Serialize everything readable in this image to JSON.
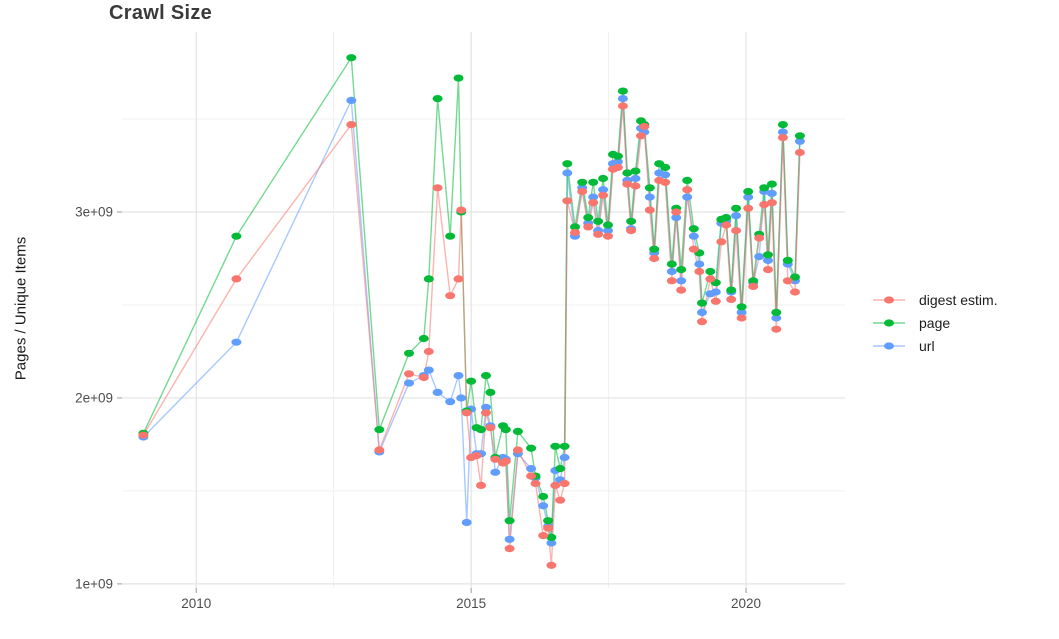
{
  "title": "Crawl Size",
  "y_axis": {
    "title": "Pages / Unique Items",
    "ticks": [
      {
        "label": "3e+09",
        "value": 3.0
      },
      {
        "label": "2e+09",
        "value": 2.0
      },
      {
        "label": "1e+09",
        "value": 1.0
      }
    ]
  },
  "x_axis": {
    "ticks": [
      {
        "label": "2010",
        "value": 2010
      },
      {
        "label": "2015",
        "value": 2015
      },
      {
        "label": "2020",
        "value": 2020
      }
    ]
  },
  "legend": {
    "position": "right",
    "items": [
      {
        "label": "digest estim.",
        "color": "#F8766D",
        "series": "digest estim."
      },
      {
        "label": "page",
        "color": "#00BA38",
        "series": "page"
      },
      {
        "label": "url",
        "color": "#619CFF",
        "series": "url"
      }
    ]
  },
  "chart_data": {
    "type": "line",
    "title": "Crawl Size",
    "xlabel": "",
    "ylabel": "Pages / Unique Items",
    "values_unit": "1e9 (billions of pages / unique items)",
    "x_range": [
      2008.65,
      2021.8
    ],
    "y_range": [
      0.978,
      3.968
    ],
    "x_major_gridlines": [
      2010,
      2015,
      2020
    ],
    "x_minor_gridlines": [
      2012.5,
      2017.5
    ],
    "y_major_gridlines": [
      1.0,
      2.0,
      3.0
    ],
    "y_minor_gridlines": [
      1.5,
      2.5,
      3.5
    ],
    "grid": true,
    "legend_position": "right",
    "x": [
      2009.04,
      2010.73,
      2012.82,
      2013.33,
      2013.87,
      2014.14,
      2014.23,
      2014.39,
      2014.62,
      2014.77,
      2014.82,
      2014.92,
      2015.0,
      2015.1,
      2015.18,
      2015.27,
      2015.35,
      2015.44,
      2015.58,
      2015.63,
      2015.7,
      2015.85,
      2016.09,
      2016.17,
      2016.31,
      2016.4,
      2016.46,
      2016.53,
      2016.62,
      2016.7,
      2016.75,
      2016.89,
      2017.02,
      2017.13,
      2017.22,
      2017.31,
      2017.4,
      2017.49,
      2017.58,
      2017.67,
      2017.76,
      2017.84,
      2017.91,
      2017.99,
      2018.09,
      2018.15,
      2018.25,
      2018.33,
      2018.42,
      2018.53,
      2018.65,
      2018.73,
      2018.82,
      2018.93,
      2019.05,
      2019.15,
      2019.2,
      2019.35,
      2019.45,
      2019.55,
      2019.64,
      2019.73,
      2019.82,
      2019.92,
      2020.04,
      2020.13,
      2020.24,
      2020.33,
      2020.4,
      2020.47,
      2020.55,
      2020.67,
      2020.76,
      2020.89,
      2020.98
    ],
    "series": [
      {
        "name": "url",
        "color": "#619CFF",
        "values": [
          1.79,
          2.3,
          3.6,
          1.71,
          2.08,
          2.12,
          2.15,
          2.03,
          1.98,
          2.12,
          2.0,
          1.33,
          1.94,
          1.7,
          1.7,
          1.95,
          1.85,
          1.6,
          1.68,
          1.67,
          1.24,
          1.7,
          1.62,
          1.57,
          1.42,
          1.31,
          1.22,
          1.61,
          1.56,
          1.68,
          3.21,
          2.87,
          3.13,
          2.94,
          3.08,
          2.9,
          3.12,
          2.9,
          3.26,
          3.27,
          3.61,
          3.17,
          2.91,
          3.18,
          3.45,
          3.43,
          3.08,
          2.78,
          3.21,
          3.2,
          2.68,
          2.97,
          2.63,
          3.08,
          2.87,
          2.72,
          2.46,
          2.56,
          2.57,
          2.94,
          2.95,
          2.57,
          2.98,
          2.46,
          3.08,
          2.62,
          2.76,
          3.11,
          2.74,
          3.1,
          2.43,
          3.43,
          2.72,
          2.63,
          3.38
        ]
      },
      {
        "name": "page",
        "color": "#00BA38",
        "values": [
          1.81,
          2.87,
          3.83,
          1.83,
          2.24,
          2.32,
          2.64,
          3.61,
          2.87,
          3.72,
          3.0,
          1.93,
          2.09,
          1.84,
          1.83,
          2.12,
          2.03,
          1.68,
          1.85,
          1.83,
          1.34,
          1.82,
          1.73,
          1.58,
          1.47,
          1.34,
          1.25,
          1.74,
          1.62,
          1.74,
          3.26,
          2.92,
          3.16,
          2.97,
          3.16,
          2.95,
          3.18,
          2.93,
          3.31,
          3.3,
          3.65,
          3.21,
          2.95,
          3.22,
          3.49,
          3.47,
          3.13,
          2.8,
          3.26,
          3.24,
          2.72,
          3.02,
          2.69,
          3.17,
          2.91,
          2.78,
          2.51,
          2.68,
          2.62,
          2.96,
          2.97,
          2.58,
          3.02,
          2.49,
          3.11,
          2.63,
          2.88,
          3.13,
          2.77,
          3.15,
          2.46,
          3.47,
          2.74,
          2.65,
          3.41
        ]
      },
      {
        "name": "digest estim.",
        "color": "#F8766D",
        "values": [
          1.8,
          2.64,
          3.47,
          1.72,
          2.13,
          2.11,
          2.25,
          3.13,
          2.55,
          2.64,
          3.01,
          1.92,
          1.68,
          1.69,
          1.53,
          1.92,
          1.84,
          1.67,
          1.65,
          1.66,
          1.19,
          1.72,
          1.58,
          1.54,
          1.26,
          1.3,
          1.1,
          1.53,
          1.45,
          1.54,
          3.06,
          2.89,
          3.11,
          2.92,
          3.05,
          2.88,
          3.09,
          2.87,
          3.23,
          3.24,
          3.57,
          3.15,
          2.9,
          3.14,
          3.41,
          3.46,
          3.01,
          2.75,
          3.17,
          3.16,
          2.63,
          3.0,
          2.58,
          3.12,
          2.8,
          2.68,
          2.41,
          2.64,
          2.52,
          2.84,
          2.93,
          2.53,
          2.9,
          2.43,
          3.02,
          2.6,
          2.86,
          3.04,
          2.69,
          3.05,
          2.37,
          3.4,
          2.63,
          2.57,
          3.32
        ]
      }
    ]
  },
  "style": {
    "major_grid_color": "#e3e3e3",
    "minor_grid_color": "#f0f0f0",
    "tick_color": "#9a9a9a",
    "tick_label_color": "#4d4d4d",
    "line_opacity": 0.55
  }
}
